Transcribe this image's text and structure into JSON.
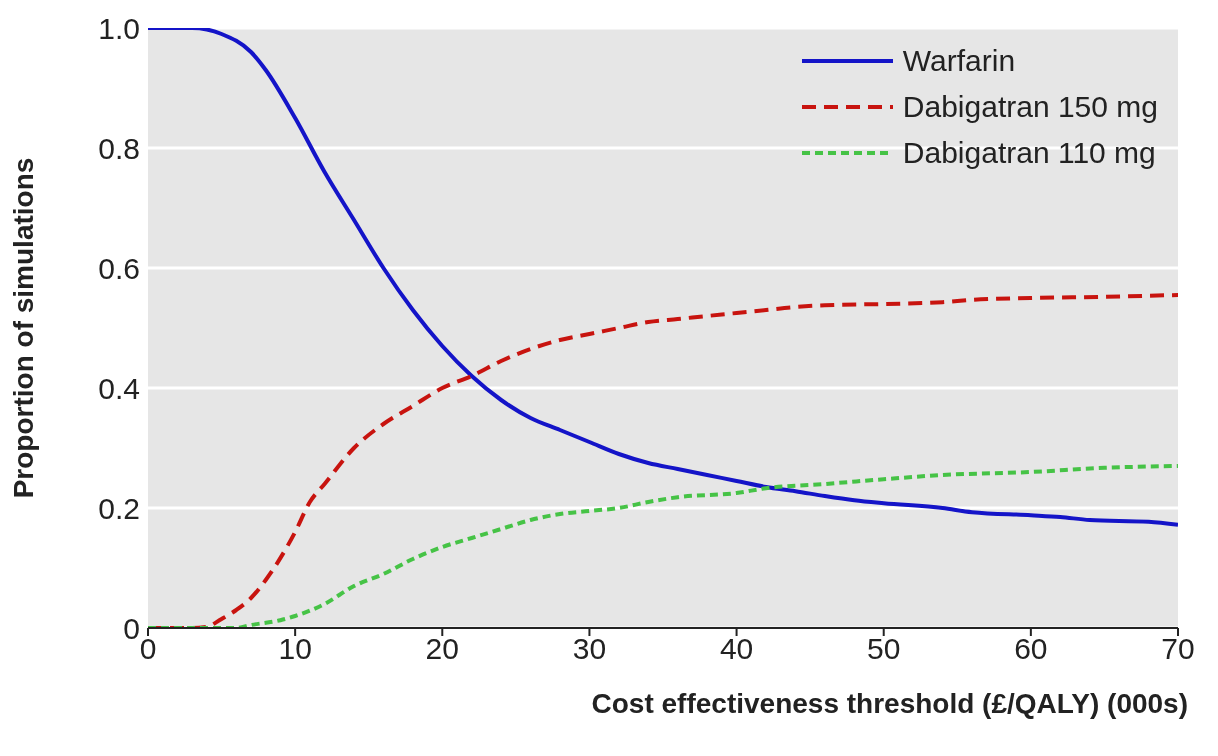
{
  "chart_data": {
    "type": "line",
    "xlabel": "Cost effectiveness threshold (£/QALY) (000s)",
    "ylabel": "Proportion of simulations",
    "xlim": [
      0,
      70
    ],
    "xticks": [
      0,
      10,
      20,
      30,
      40,
      50,
      60,
      70
    ],
    "ylim": [
      0,
      1
    ],
    "yticks": [
      0,
      0.2,
      0.4,
      0.6,
      0.8,
      {
        "value": 1,
        "label": "1.0"
      }
    ],
    "grid": "y",
    "legend": "top right",
    "marker": "none",
    "series": [
      {
        "name": "Warfarin",
        "color": "#1414c8",
        "line_style": "solid",
        "x": [
          0,
          3,
          5,
          7,
          8,
          10,
          12,
          14,
          16,
          18,
          20,
          22,
          24,
          26,
          28,
          30,
          32,
          34,
          36,
          38,
          40,
          42,
          44,
          46,
          48,
          50,
          54,
          56,
          60,
          62,
          64,
          68,
          70
        ],
        "values": [
          1,
          1,
          0.99,
          0.96,
          0.93,
          0.85,
          0.76,
          0.68,
          0.6,
          0.53,
          0.47,
          0.42,
          0.38,
          0.35,
          0.33,
          0.31,
          0.29,
          0.275,
          0.265,
          0.255,
          0.245,
          0.235,
          0.228,
          0.22,
          0.213,
          0.208,
          0.2,
          0.193,
          0.188,
          0.185,
          0.18,
          0.177,
          0.172
        ]
      },
      {
        "name": "Dabigatran 150 mg",
        "color": "#c8140f",
        "line_style": "dashed",
        "x": [
          0,
          3,
          4,
          5,
          6,
          7,
          8,
          10,
          11,
          12,
          14,
          16,
          18,
          20,
          22,
          24,
          26,
          28,
          30,
          32,
          34,
          36,
          38,
          40,
          42,
          44,
          46,
          50,
          54,
          56,
          60,
          65,
          70
        ],
        "values": [
          0,
          0,
          0.002,
          0.015,
          0.03,
          0.05,
          0.08,
          0.16,
          0.21,
          0.24,
          0.3,
          0.34,
          0.37,
          0.4,
          0.42,
          0.445,
          0.465,
          0.48,
          0.49,
          0.5,
          0.51,
          0.515,
          0.52,
          0.525,
          0.53,
          0.535,
          0.538,
          0.54,
          0.543,
          0.547,
          0.55,
          0.552,
          0.555
        ]
      },
      {
        "name": "Dabigatran 110 mg",
        "color": "#46c346",
        "line_style": "dotted",
        "x": [
          0,
          4,
          6,
          7,
          9,
          10,
          12,
          14,
          16,
          18,
          20,
          22,
          24,
          26,
          28,
          30,
          32,
          34,
          36,
          40,
          42,
          46,
          50,
          54,
          60,
          65,
          70
        ],
        "values": [
          0,
          0,
          0,
          0.005,
          0.013,
          0.02,
          0.04,
          0.07,
          0.09,
          0.115,
          0.135,
          0.15,
          0.165,
          0.18,
          0.19,
          0.195,
          0.2,
          0.21,
          0.218,
          0.225,
          0.233,
          0.24,
          0.248,
          0.255,
          0.26,
          0.267,
          0.27
        ]
      }
    ]
  }
}
